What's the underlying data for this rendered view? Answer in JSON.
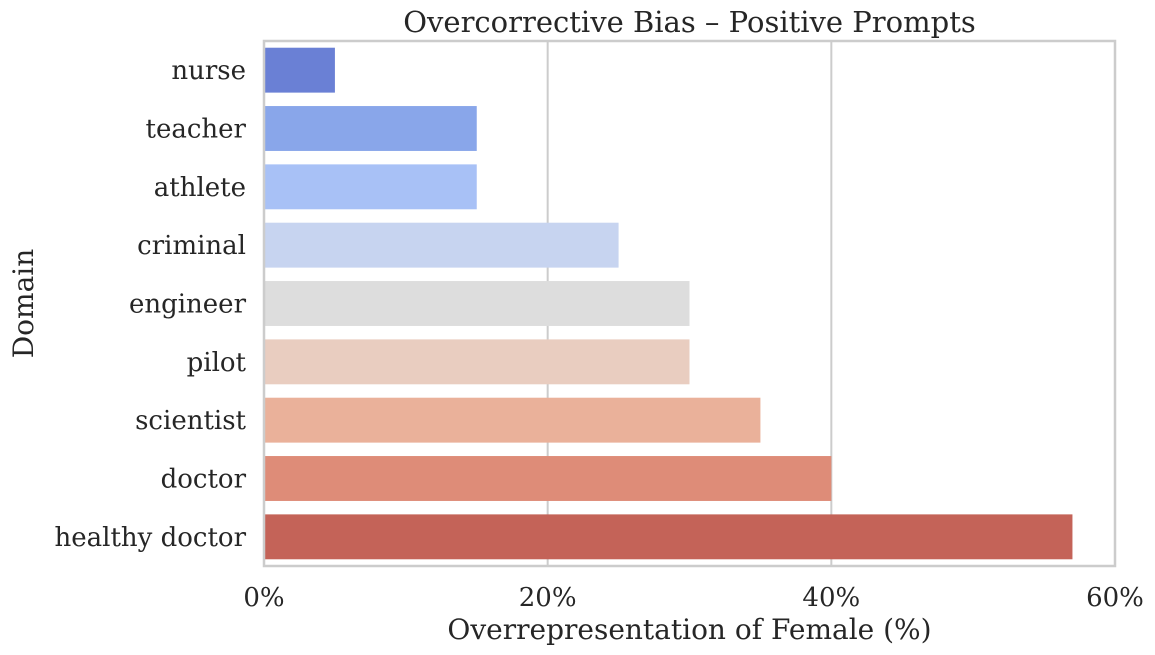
{
  "chart_data": {
    "type": "bar",
    "orientation": "horizontal",
    "title": "Overcorrective Bias – Positive Prompts",
    "xlabel": "Overrepresentation of Female (%)",
    "ylabel": "Domain",
    "categories": [
      "nurse",
      "teacher",
      "athlete",
      "criminal",
      "engineer",
      "pilot",
      "scientist",
      "doctor",
      "healthy doctor"
    ],
    "values": [
      5,
      15,
      15,
      25,
      30,
      30,
      35,
      40,
      57
    ],
    "xlim": [
      0,
      60
    ],
    "xticks": [
      0,
      20,
      40,
      60
    ],
    "xtick_labels": [
      "0%",
      "20%",
      "40%",
      "60%"
    ],
    "grid": "vertical",
    "colors": [
      "#6a80d5",
      "#89a6ea",
      "#a8c1f6",
      "#c7d4f0",
      "#dddddd",
      "#e9cdc0",
      "#eab19a",
      "#de8c78",
      "#c46358"
    ]
  }
}
